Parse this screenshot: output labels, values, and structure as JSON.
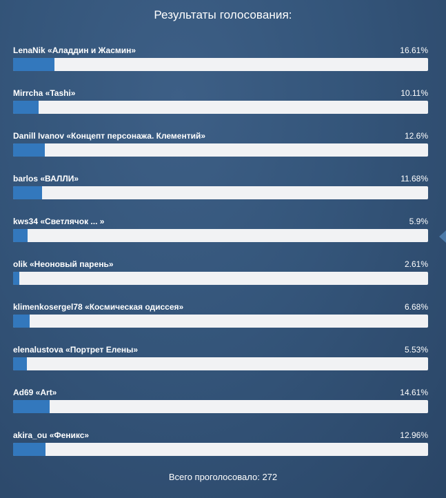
{
  "poll": {
    "title": "Результаты голосования:",
    "options": [
      {
        "name": "LenaNik «Аладдин и Жасмин»",
        "percent_label": "16.61%",
        "percent": 16.61
      },
      {
        "name": "Mirrcha «Tashi»",
        "percent_label": "10.11%",
        "percent": 10.11
      },
      {
        "name": "Danill Ivanov «Концепт персонажа. Клементий»",
        "percent_label": "12.6%",
        "percent": 12.6
      },
      {
        "name": "barlos «ВАЛЛИ»",
        "percent_label": "11.68%",
        "percent": 11.68
      },
      {
        "name": "kws34 «Светлячок ... »",
        "percent_label": "5.9%",
        "percent": 5.9
      },
      {
        "name": "olik «Неоновый парень»",
        "percent_label": "2.61%",
        "percent": 2.61
      },
      {
        "name": "klimenkosergel78 «Космическая одиссея»",
        "percent_label": "6.68%",
        "percent": 6.68
      },
      {
        "name": "elenalustova «Портрет Елены»",
        "percent_label": "5.53%",
        "percent": 5.53
      },
      {
        "name": "Ad69 «Art»",
        "percent_label": "14.61%",
        "percent": 14.61
      },
      {
        "name": "akira_ou «Феникс»",
        "percent_label": "12.96%",
        "percent": 12.96
      }
    ],
    "total_label": "Всего проголосовало: 272"
  },
  "colors": {
    "bar_fill": "#3378bd",
    "bar_track": "#f1f2f4",
    "background": "#34557a"
  }
}
